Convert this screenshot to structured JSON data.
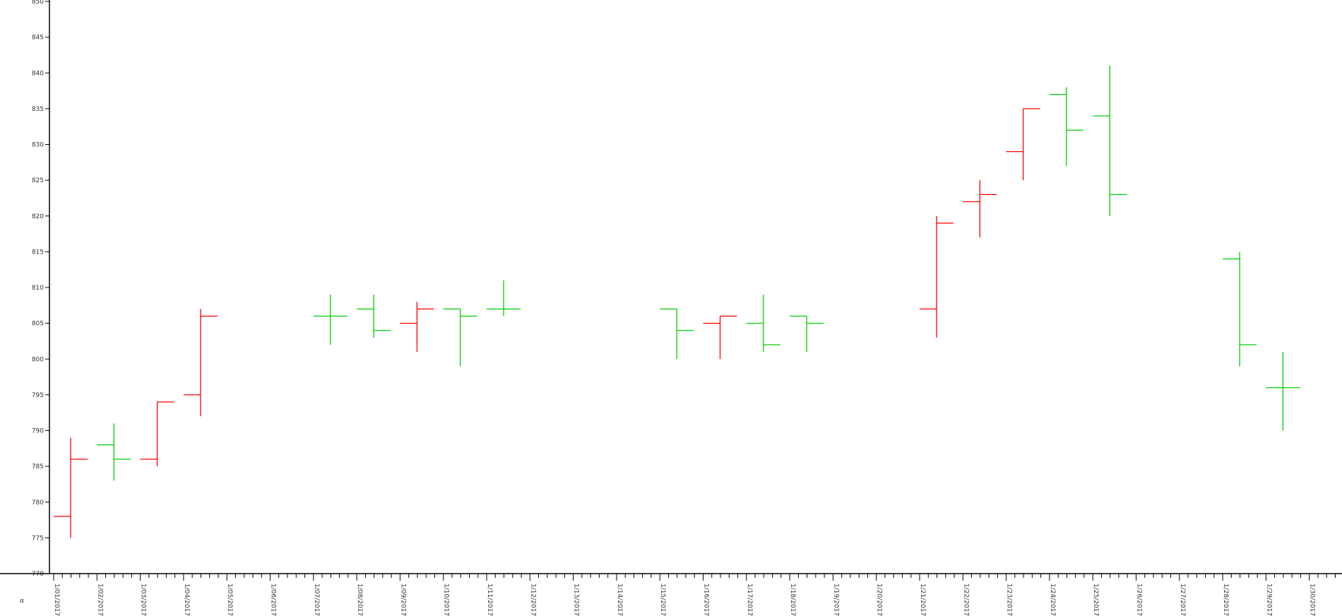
{
  "chart_data": {
    "type": "ohlc",
    "title": "",
    "xlabel": "",
    "ylabel": "",
    "ylim": [
      770,
      850
    ],
    "y_tick_step": 5,
    "grid": false,
    "legend": "none",
    "x_corner_label": "α",
    "x_dates": [
      "1/01/2017",
      "1/02/2017",
      "1/03/2017",
      "1/04/2017",
      "1/05/2017",
      "1/06/2017",
      "1/07/2017",
      "1/08/2017",
      "1/09/2017",
      "1/10/2017",
      "1/11/2017",
      "1/12/2017",
      "1/13/2017",
      "1/14/2017",
      "1/15/2017",
      "1/16/2017",
      "1/17/2017",
      "1/18/2017",
      "1/19/2017",
      "1/20/2017",
      "1/21/2017",
      "1/22/2017",
      "1/23/2017",
      "1/24/2017",
      "1/25/2017",
      "1/26/2017",
      "1/27/2017",
      "1/28/2017",
      "1/29/2017",
      "1/30/2017"
    ],
    "x_tick_labels": [
      "1/01/2017",
      "1/02/2017",
      "1/03/2017",
      "1/04/2017",
      "1/05/2017",
      "1/06/2017",
      "1/07/2017",
      "1/08/2017",
      "1/09/2017",
      "1/10/2017",
      "1/11/2017",
      "1/12/2017",
      "1/13/2017",
      "1/14/2017",
      "1/15/2017",
      "1/16/2017",
      "1/17/2017",
      "1/18/2017",
      "1/19/2017",
      "1/20/2017",
      "1/21/2017",
      "1/22/2017",
      "1/23/2017",
      "1/24/2017",
      "1/25/2017",
      "1/26/2017",
      "1/27/2017",
      "1/28/2017",
      "1/29/2017",
      "1/30/2017"
    ],
    "colors": {
      "up": "#ff0000",
      "down": "#00cc00",
      "axis": "#000000"
    },
    "bars": [
      {
        "x": "1/01/2017",
        "o": 778,
        "h": 789,
        "l": 775,
        "c": 786,
        "color": "up"
      },
      {
        "x": "1/02/2017",
        "o": 788,
        "h": 791,
        "l": 783,
        "c": 786,
        "color": "down"
      },
      {
        "x": "1/03/2017",
        "o": 786,
        "h": 794,
        "l": 785,
        "c": 794,
        "color": "up"
      },
      {
        "x": "1/04/2017",
        "o": 795,
        "h": 807,
        "l": 792,
        "c": 806,
        "color": "up"
      },
      {
        "x": "1/07/2017",
        "o": 806,
        "h": 809,
        "l": 802,
        "c": 806,
        "color": "down"
      },
      {
        "x": "1/08/2017",
        "o": 807,
        "h": 809,
        "l": 803,
        "c": 804,
        "color": "down"
      },
      {
        "x": "1/09/2017",
        "o": 805,
        "h": 808,
        "l": 801,
        "c": 807,
        "color": "up"
      },
      {
        "x": "1/10/2017",
        "o": 807,
        "h": 807,
        "l": 799,
        "c": 806,
        "color": "down"
      },
      {
        "x": "1/11/2017",
        "o": 807,
        "h": 811,
        "l": 806,
        "c": 807,
        "color": "down"
      },
      {
        "x": "1/15/2017",
        "o": 807,
        "h": 807,
        "l": 800,
        "c": 804,
        "color": "down"
      },
      {
        "x": "1/16/2017",
        "o": 805,
        "h": 806,
        "l": 800,
        "c": 806,
        "color": "up"
      },
      {
        "x": "1/17/2017",
        "o": 805,
        "h": 809,
        "l": 801,
        "c": 802,
        "color": "down"
      },
      {
        "x": "1/18/2017",
        "o": 806,
        "h": 806,
        "l": 801,
        "c": 805,
        "color": "down"
      },
      {
        "x": "1/21/2017",
        "o": 807,
        "h": 820,
        "l": 803,
        "c": 819,
        "color": "up"
      },
      {
        "x": "1/22/2017",
        "o": 822,
        "h": 825,
        "l": 817,
        "c": 823,
        "color": "up"
      },
      {
        "x": "1/23/2017",
        "o": 829,
        "h": 835,
        "l": 825,
        "c": 835,
        "color": "up"
      },
      {
        "x": "1/24/2017",
        "o": 837,
        "h": 838,
        "l": 827,
        "c": 832,
        "color": "down"
      },
      {
        "x": "1/25/2017",
        "o": 834,
        "h": 841,
        "l": 820,
        "c": 823,
        "color": "down"
      },
      {
        "x": "1/28/2017",
        "o": 814,
        "h": 815,
        "l": 799,
        "c": 802,
        "color": "down"
      },
      {
        "x": "1/29/2017",
        "o": 796,
        "h": 801,
        "l": 790,
        "c": 796,
        "color": "down"
      }
    ]
  }
}
